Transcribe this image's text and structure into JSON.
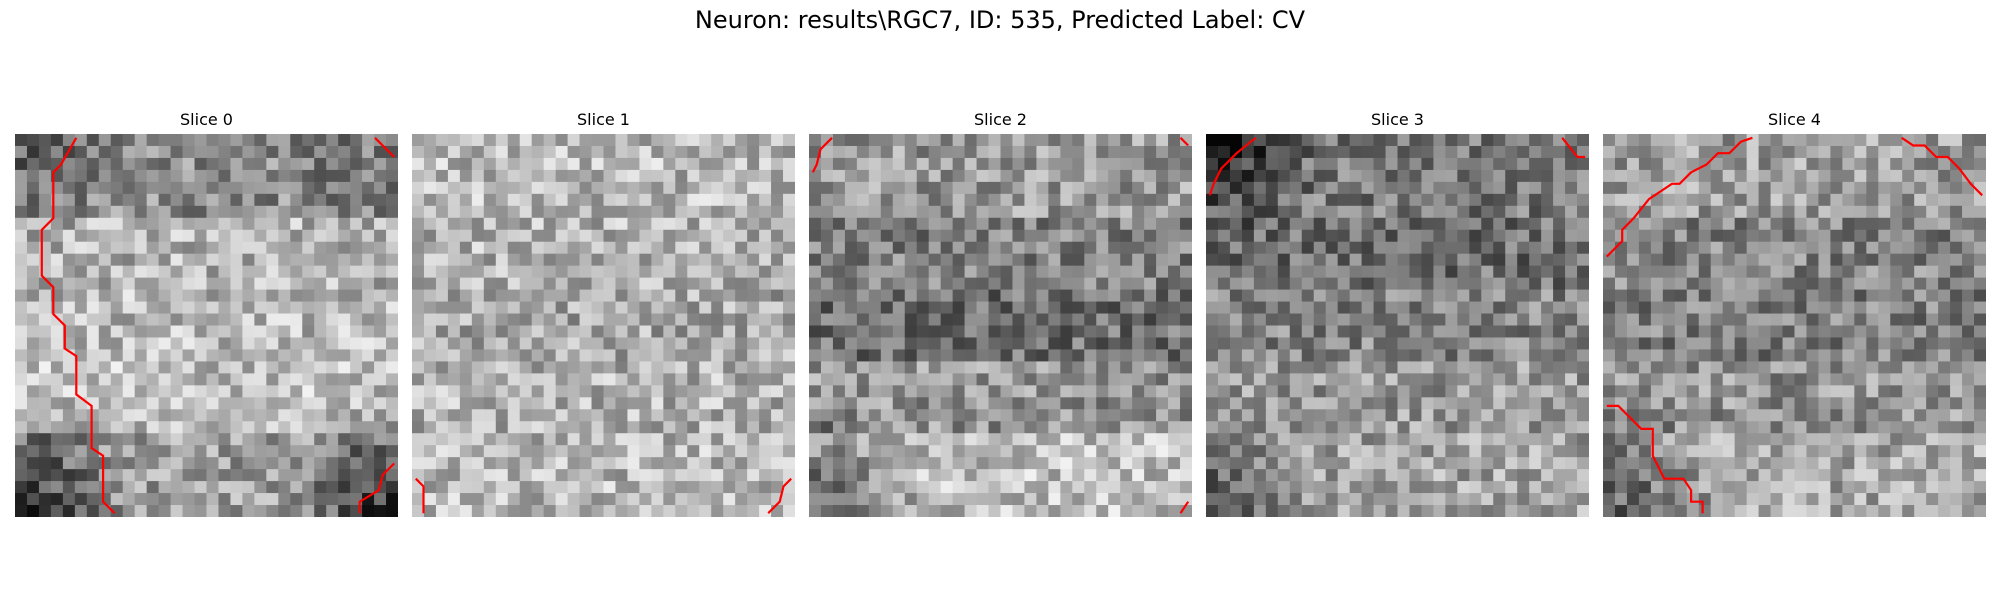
{
  "figure": {
    "title": "Neuron: results\\RGC7, ID: 535, Predicted Label: CV"
  },
  "panels": [
    {
      "title": "Slice 0",
      "texture": {
        "seed": 11,
        "base": [
          0.55,
          0.7,
          0.72,
          0.74,
          0.62
        ],
        "dark_corners": [
          0.18,
          0.1,
          0.45,
          0.45
        ]
      },
      "contours": [
        [
          [
            0.16,
            0.01
          ],
          [
            0.12,
            0.08
          ],
          [
            0.1,
            0.1
          ],
          [
            0.1,
            0.22
          ],
          [
            0.07,
            0.25
          ],
          [
            0.07,
            0.37
          ],
          [
            0.1,
            0.4
          ],
          [
            0.1,
            0.47
          ],
          [
            0.13,
            0.5
          ],
          [
            0.13,
            0.56
          ],
          [
            0.16,
            0.58
          ],
          [
            0.16,
            0.68
          ],
          [
            0.2,
            0.71
          ],
          [
            0.2,
            0.82
          ],
          [
            0.23,
            0.84
          ],
          [
            0.23,
            0.96
          ],
          [
            0.26,
            0.99
          ]
        ],
        [
          [
            0.94,
            0.01
          ],
          [
            0.99,
            0.06
          ]
        ],
        [
          [
            0.9,
            0.99
          ],
          [
            0.9,
            0.96
          ],
          [
            0.95,
            0.93
          ],
          [
            0.96,
            0.89
          ],
          [
            0.99,
            0.86
          ]
        ]
      ]
    },
    {
      "title": "Slice 1",
      "texture": {
        "seed": 23,
        "base": [
          0.72,
          0.7,
          0.66,
          0.7,
          0.72
        ],
        "dark_corners": [
          0.0,
          0.0,
          0.0,
          0.0
        ]
      },
      "contours": [
        [
          [
            0.01,
            0.9
          ],
          [
            0.03,
            0.92
          ],
          [
            0.03,
            0.99
          ]
        ],
        [
          [
            0.93,
            0.99
          ],
          [
            0.96,
            0.96
          ],
          [
            0.97,
            0.92
          ],
          [
            0.99,
            0.9
          ]
        ]
      ]
    },
    {
      "title": "Slice 2",
      "texture": {
        "seed": 37,
        "base": [
          0.6,
          0.5,
          0.44,
          0.58,
          0.74
        ],
        "dark_corners": [
          0.0,
          0.0,
          0.4,
          0.0
        ]
      },
      "contours": [
        [
          [
            0.06,
            0.01
          ],
          [
            0.03,
            0.04
          ],
          [
            0.02,
            0.08
          ],
          [
            0.01,
            0.1
          ]
        ],
        [
          [
            0.97,
            0.01
          ],
          [
            0.99,
            0.03
          ]
        ],
        [
          [
            0.97,
            0.99
          ],
          [
            0.99,
            0.96
          ]
        ]
      ]
    },
    {
      "title": "Slice 3",
      "texture": {
        "seed": 53,
        "base": [
          0.48,
          0.44,
          0.52,
          0.6,
          0.64
        ],
        "dark_corners": [
          0.38,
          0.0,
          0.3,
          0.0
        ]
      },
      "contours": [
        [
          [
            0.13,
            0.01
          ],
          [
            0.08,
            0.05
          ],
          [
            0.04,
            0.09
          ],
          [
            0.02,
            0.13
          ],
          [
            0.01,
            0.16
          ]
        ],
        [
          [
            0.93,
            0.01
          ],
          [
            0.97,
            0.06
          ],
          [
            0.99,
            0.06
          ]
        ]
      ]
    },
    {
      "title": "Slice 4",
      "texture": {
        "seed": 71,
        "base": [
          0.62,
          0.52,
          0.5,
          0.58,
          0.66
        ],
        "dark_corners": [
          0.0,
          0.0,
          0.3,
          0.0
        ]
      },
      "contours": [
        [
          [
            0.01,
            0.32
          ],
          [
            0.05,
            0.28
          ],
          [
            0.05,
            0.25
          ],
          [
            0.08,
            0.22
          ],
          [
            0.12,
            0.17
          ],
          [
            0.18,
            0.13
          ],
          [
            0.2,
            0.13
          ],
          [
            0.23,
            0.1
          ],
          [
            0.27,
            0.08
          ],
          [
            0.3,
            0.05
          ],
          [
            0.33,
            0.05
          ],
          [
            0.36,
            0.02
          ],
          [
            0.39,
            0.01
          ]
        ],
        [
          [
            0.78,
            0.01
          ],
          [
            0.81,
            0.03
          ],
          [
            0.84,
            0.03
          ],
          [
            0.87,
            0.06
          ],
          [
            0.9,
            0.06
          ],
          [
            0.93,
            0.09
          ],
          [
            0.96,
            0.13
          ],
          [
            0.99,
            0.16
          ]
        ],
        [
          [
            0.01,
            0.71
          ],
          [
            0.04,
            0.71
          ],
          [
            0.07,
            0.74
          ],
          [
            0.1,
            0.77
          ],
          [
            0.13,
            0.77
          ],
          [
            0.13,
            0.84
          ],
          [
            0.16,
            0.9
          ],
          [
            0.21,
            0.9
          ],
          [
            0.23,
            0.93
          ],
          [
            0.23,
            0.96
          ],
          [
            0.26,
            0.96
          ],
          [
            0.26,
            0.99
          ]
        ]
      ]
    }
  ]
}
